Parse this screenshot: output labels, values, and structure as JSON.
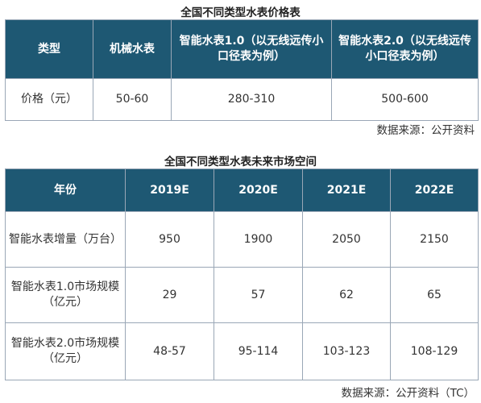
{
  "table1": {
    "caption": "全国不同类型水表价格表",
    "headers": [
      "类型",
      "机械水表",
      "智能水表1.0（以无线远传小口径表为例）",
      "智能水表2.0（以无线远传小口径表为例）"
    ],
    "row": [
      "价格（元）",
      "50-60",
      "280-310",
      "500-600"
    ],
    "source": "数据来源：公开资料"
  },
  "table2": {
    "caption": "全国不同类型水表未来市场空间",
    "headers": [
      "年份",
      "2019E",
      "2020E",
      "2021E",
      "2022E"
    ],
    "rows": [
      [
        "智能水表增量（万台）",
        "950",
        "1900",
        "2050",
        "2150"
      ],
      [
        "智能水表1.0市场规模（亿元）",
        "29",
        "57",
        "62",
        "65"
      ],
      [
        "智能水表2.0市场规模（亿元）",
        "48-57",
        "95-114",
        "103-123",
        "108-129"
      ]
    ],
    "source": "数据来源：公开资料（TC）"
  }
}
